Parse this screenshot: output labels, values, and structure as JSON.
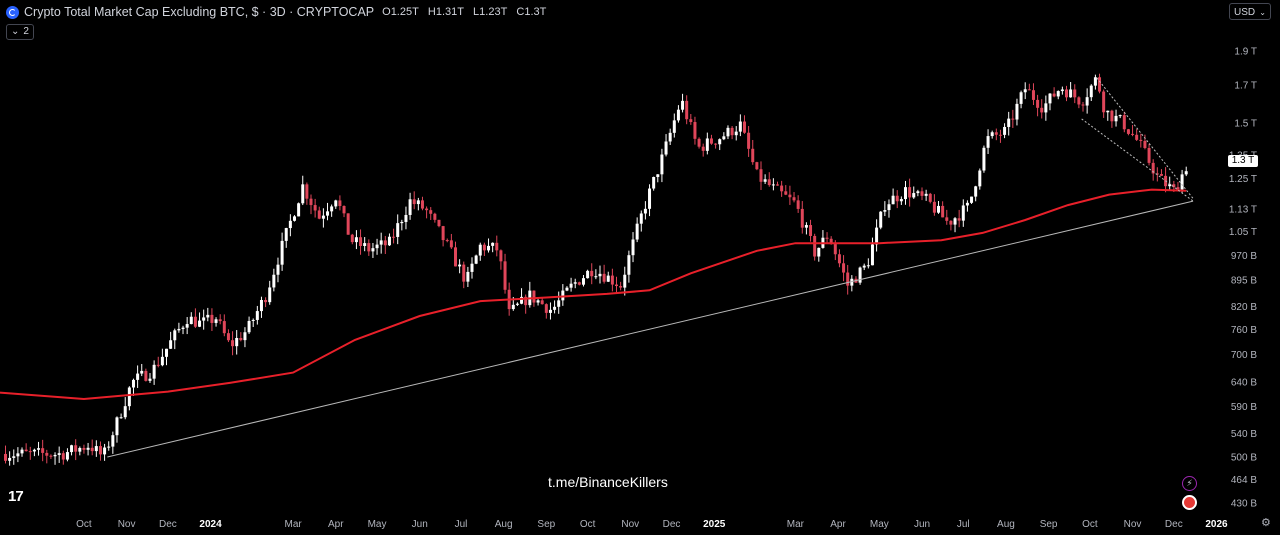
{
  "header": {
    "title": "Crypto Total Market Cap Excluding BTC, $ · 3D · CRYPTOCAP",
    "o_label": "O",
    "o_value": "1.25T",
    "h_label": "H",
    "h_value": "1.31T",
    "l_label": "L",
    "l_value": "1.23T",
    "c_label": "C",
    "c_value": "1.3T",
    "indicator_count": "2"
  },
  "currency": "USD",
  "last_price_label": "1.3 T",
  "watermark": "t.me/BinanceKillers",
  "icons": [
    "tradingview-logo-icon",
    "bolt-icon",
    "flag-icon",
    "gear-icon",
    "chevron-down-icon"
  ],
  "chart_data": {
    "type": "candlestick",
    "scale": "log",
    "ylim": [
      420,
      2050
    ],
    "y_ticks": [
      {
        "v": 1900,
        "label": "1.9 T"
      },
      {
        "v": 1700,
        "label": "1.7 T"
      },
      {
        "v": 1500,
        "label": "1.5 T"
      },
      {
        "v": 1350,
        "label": "1.35 T"
      },
      {
        "v": 1250,
        "label": "1.25 T"
      },
      {
        "v": 1130,
        "label": "1.13 T"
      },
      {
        "v": 1050,
        "label": "1.05 T"
      },
      {
        "v": 970,
        "label": "970 B"
      },
      {
        "v": 895,
        "label": "895 B"
      },
      {
        "v": 820,
        "label": "820 B"
      },
      {
        "v": 760,
        "label": "760 B"
      },
      {
        "v": 700,
        "label": "700 B"
      },
      {
        "v": 640,
        "label": "640 B"
      },
      {
        "v": 590,
        "label": "590 B"
      },
      {
        "v": 540,
        "label": "540 B"
      },
      {
        "v": 500,
        "label": "500 B"
      },
      {
        "v": 464,
        "label": "464 B"
      },
      {
        "v": 430,
        "label": "430 B"
      }
    ],
    "x_ticks": [
      {
        "date": "2023-10-01",
        "label": "Oct",
        "bold": false
      },
      {
        "date": "2023-11-01",
        "label": "Nov",
        "bold": false
      },
      {
        "date": "2023-12-01",
        "label": "Dec",
        "bold": false
      },
      {
        "date": "2024-01-01",
        "label": "2024",
        "bold": true
      },
      {
        "date": "2024-03-01",
        "label": "Mar",
        "bold": false
      },
      {
        "date": "2024-04-01",
        "label": "Apr",
        "bold": false
      },
      {
        "date": "2024-05-01",
        "label": "May",
        "bold": false
      },
      {
        "date": "2024-06-01",
        "label": "Jun",
        "bold": false
      },
      {
        "date": "2024-07-01",
        "label": "Jul",
        "bold": false
      },
      {
        "date": "2024-08-01",
        "label": "Aug",
        "bold": false
      },
      {
        "date": "2024-09-01",
        "label": "Sep",
        "bold": false
      },
      {
        "date": "2024-10-01",
        "label": "Oct",
        "bold": false
      },
      {
        "date": "2024-11-01",
        "label": "Nov",
        "bold": false
      },
      {
        "date": "2024-12-01",
        "label": "Dec",
        "bold": false
      },
      {
        "date": "2025-01-01",
        "label": "2025",
        "bold": true
      },
      {
        "date": "2025-03-01",
        "label": "Mar",
        "bold": false
      },
      {
        "date": "2025-04-01",
        "label": "Apr",
        "bold": false
      },
      {
        "date": "2025-05-01",
        "label": "May",
        "bold": false
      },
      {
        "date": "2025-06-01",
        "label": "Jun",
        "bold": false
      },
      {
        "date": "2025-07-01",
        "label": "Jul",
        "bold": false
      },
      {
        "date": "2025-08-01",
        "label": "Aug",
        "bold": false
      },
      {
        "date": "2025-09-01",
        "label": "Sep",
        "bold": false
      },
      {
        "date": "2025-10-01",
        "label": "Oct",
        "bold": false
      },
      {
        "date": "2025-11-01",
        "label": "Nov",
        "bold": false
      },
      {
        "date": "2025-12-01",
        "label": "Dec",
        "bold": false
      },
      {
        "date": "2026-01-01",
        "label": "2026",
        "bold": true
      }
    ],
    "close_path": [
      [
        "2023-09-15",
        505
      ],
      [
        "2023-10-05",
        520
      ],
      [
        "2023-10-15",
        500
      ],
      [
        "2023-10-25",
        560
      ],
      [
        "2023-11-05",
        640
      ],
      [
        "2023-11-20",
        665
      ],
      [
        "2023-12-05",
        740
      ],
      [
        "2023-12-15",
        790
      ],
      [
        "2023-12-25",
        775
      ],
      [
        "2024-01-05",
        790
      ],
      [
        "2024-01-15",
        720
      ],
      [
        "2024-01-28",
        760
      ],
      [
        "2024-02-10",
        850
      ],
      [
        "2024-02-25",
        1040
      ],
      [
        "2024-03-08",
        1220
      ],
      [
        "2024-03-20",
        1100
      ],
      [
        "2024-04-01",
        1180
      ],
      [
        "2024-04-12",
        1020
      ],
      [
        "2024-04-25",
        990
      ],
      [
        "2024-05-10",
        1010
      ],
      [
        "2024-05-25",
        1160
      ],
      [
        "2024-06-05",
        1130
      ],
      [
        "2024-06-20",
        1010
      ],
      [
        "2024-07-05",
        890
      ],
      [
        "2024-07-15",
        1000
      ],
      [
        "2024-07-28",
        990
      ],
      [
        "2024-08-05",
        800
      ],
      [
        "2024-08-20",
        850
      ],
      [
        "2024-09-05",
        810
      ],
      [
        "2024-09-20",
        880
      ],
      [
        "2024-10-05",
        930
      ],
      [
        "2024-10-25",
        880
      ],
      [
        "2024-11-10",
        1120
      ],
      [
        "2024-11-25",
        1350
      ],
      [
        "2024-12-08",
        1620
      ],
      [
        "2024-12-20",
        1380
      ],
      [
        "2025-01-05",
        1430
      ],
      [
        "2025-01-20",
        1490
      ],
      [
        "2025-02-01",
        1260
      ],
      [
        "2025-02-15",
        1200
      ],
      [
        "2025-03-01",
        1150
      ],
      [
        "2025-03-15",
        980
      ],
      [
        "2025-03-25",
        1040
      ],
      [
        "2025-04-08",
        880
      ],
      [
        "2025-04-22",
        940
      ],
      [
        "2025-05-05",
        1150
      ],
      [
        "2025-05-20",
        1200
      ],
      [
        "2025-06-05",
        1160
      ],
      [
        "2025-06-20",
        1080
      ],
      [
        "2025-07-05",
        1140
      ],
      [
        "2025-07-18",
        1420
      ],
      [
        "2025-08-01",
        1460
      ],
      [
        "2025-08-15",
        1680
      ],
      [
        "2025-08-28",
        1580
      ],
      [
        "2025-09-10",
        1690
      ],
      [
        "2025-09-25",
        1610
      ],
      [
        "2025-10-06",
        1740
      ],
      [
        "2025-10-12",
        1560
      ],
      [
        "2025-10-25",
        1500
      ],
      [
        "2025-11-05",
        1410
      ],
      [
        "2025-11-20",
        1250
      ],
      [
        "2025-12-01",
        1200
      ],
      [
        "2025-12-10",
        1300
      ]
    ],
    "moving_average": [
      [
        "2023-08-01",
        618
      ],
      [
        "2023-10-01",
        605
      ],
      [
        "2023-12-01",
        620
      ],
      [
        "2024-01-15",
        638
      ],
      [
        "2024-03-01",
        660
      ],
      [
        "2024-04-15",
        735
      ],
      [
        "2024-06-01",
        795
      ],
      [
        "2024-07-15",
        835
      ],
      [
        "2024-09-01",
        845
      ],
      [
        "2024-10-15",
        855
      ],
      [
        "2024-11-15",
        865
      ],
      [
        "2024-12-15",
        915
      ],
      [
        "2025-02-01",
        985
      ],
      [
        "2025-03-01",
        1010
      ],
      [
        "2025-05-01",
        1010
      ],
      [
        "2025-06-15",
        1020
      ],
      [
        "2025-07-15",
        1045
      ],
      [
        "2025-08-15",
        1090
      ],
      [
        "2025-09-15",
        1145
      ],
      [
        "2025-10-15",
        1185
      ],
      [
        "2025-11-15",
        1205
      ],
      [
        "2025-12-10",
        1200
      ]
    ],
    "trendline": [
      [
        "2023-10-18",
        500
      ],
      [
        "2025-12-15",
        1160
      ]
    ],
    "channel": {
      "upper": [
        [
          "2025-10-06",
          1740
        ],
        [
          "2025-12-15",
          1170
        ]
      ],
      "lower": [
        [
          "2025-09-25",
          1520
        ],
        [
          "2025-12-15",
          1160
        ]
      ]
    },
    "colors": {
      "up": "#ffffff",
      "down": "#e0465a",
      "ma": "#e8202a",
      "trendline": "#b8b8b8",
      "channel": "#bdbdbd",
      "axis_text": "#b2b5be"
    }
  }
}
